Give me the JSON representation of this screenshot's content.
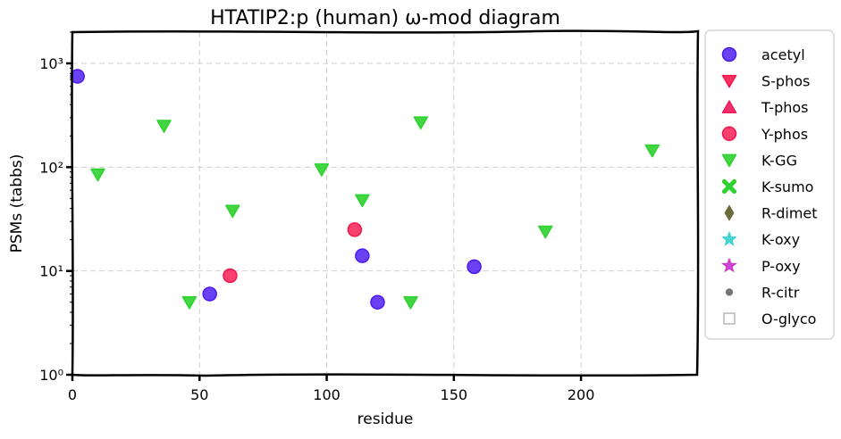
{
  "chart_data": {
    "type": "scatter",
    "title": "HTATIP2:p (human) ω-mod diagram",
    "xlabel": "residue",
    "ylabel": "PSMs (tabbs)",
    "xlim": [
      0,
      246
    ],
    "ylim": [
      1,
      2000
    ],
    "yscale": "log",
    "x_ticks": [
      0,
      50,
      100,
      150,
      200
    ],
    "y_ticks": [
      {
        "value": 1,
        "label": "10⁰"
      },
      {
        "value": 10,
        "label": "10¹"
      },
      {
        "value": 100,
        "label": "10²"
      },
      {
        "value": 1000,
        "label": "10³"
      }
    ],
    "grid": true,
    "legend_position": "right, outside plot",
    "series": [
      {
        "name": "acetyl",
        "marker": "circle",
        "color": "#4b19f0",
        "points": [
          [
            2,
            750
          ],
          [
            54,
            6
          ],
          [
            114,
            14
          ],
          [
            120,
            5
          ],
          [
            158,
            11
          ]
        ]
      },
      {
        "name": "S-phos",
        "marker": "triangle-down",
        "color": "#f5174f",
        "points": []
      },
      {
        "name": "T-phos",
        "marker": "triangle-up",
        "color": "#f0195a",
        "points": []
      },
      {
        "name": "Y-phos",
        "marker": "circle",
        "color": "#f5174f",
        "points": [
          [
            62,
            9
          ],
          [
            111,
            25
          ]
        ]
      },
      {
        "name": "K-GG",
        "marker": "triangle-down",
        "color": "#2ed12e",
        "points": [
          [
            10,
            85
          ],
          [
            36,
            250
          ],
          [
            46,
            5
          ],
          [
            63,
            38
          ],
          [
            98,
            95
          ],
          [
            114,
            48
          ],
          [
            133,
            5
          ],
          [
            137,
            270
          ],
          [
            186,
            24
          ],
          [
            228,
            145
          ]
        ]
      },
      {
        "name": "K-sumo",
        "marker": "x",
        "color": "#2ed12e",
        "points": []
      },
      {
        "name": "R-dimet",
        "marker": "diamond",
        "color": "#6b6b3a",
        "points": []
      },
      {
        "name": "K-oxy",
        "marker": "star",
        "color": "#33d1cc",
        "points": []
      },
      {
        "name": "P-oxy",
        "marker": "star",
        "color": "#cc33cc",
        "points": []
      },
      {
        "name": "R-citr",
        "marker": "small-circle",
        "color": "#666666",
        "points": []
      },
      {
        "name": "O-glyco",
        "marker": "square-open",
        "color": "#aaaaaa",
        "points": []
      }
    ]
  }
}
